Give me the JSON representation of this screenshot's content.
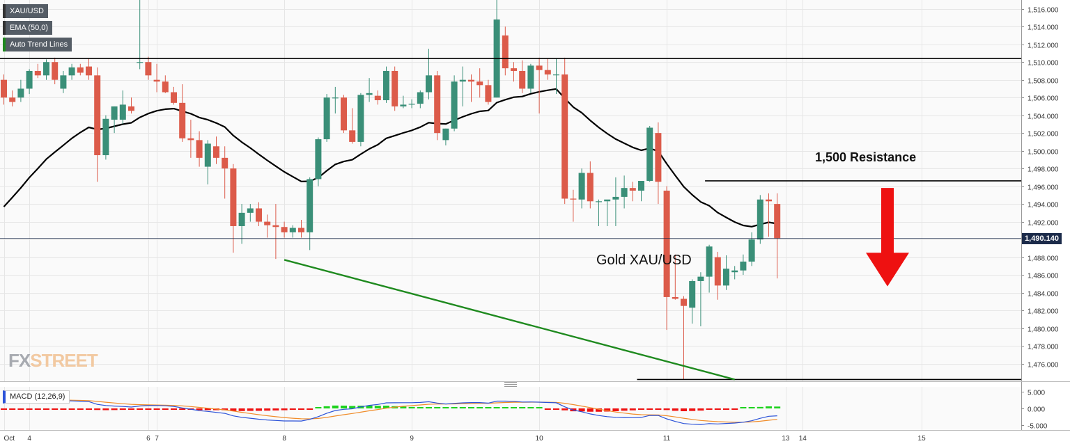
{
  "legend": {
    "symbol": "XAU/USD",
    "ema": "EMA (50,0)",
    "trend": "Auto Trend Lines",
    "macd": "MACD (12,26,9)"
  },
  "annotations": {
    "resistance_label": "1,500 Resistance",
    "asset_label": "Gold XAU/USD",
    "last_price_label": "1,490.140"
  },
  "watermark": {
    "left": "FX",
    "right": "STREET"
  },
  "colors": {
    "up": "#3a8f78",
    "down": "#dc5b4a",
    "ema": "#000000",
    "trendline": "#1f8a1f",
    "resistance": "#000000",
    "arrow": "#ee1111",
    "macd_line": "#2b52d8",
    "signal_line": "#f08c2a",
    "hist_pos": "#1ed21e",
    "hist_neg": "#ee1111",
    "grid": "#e6e6e6"
  },
  "chart_data": {
    "type": "candlestick",
    "y_range": [
      1474,
      1517
    ],
    "y_ticks": [
      1476,
      1478,
      1480,
      1482,
      1484,
      1486,
      1488,
      1490,
      1492,
      1494,
      1496,
      1498,
      1500,
      1502,
      1504,
      1506,
      1508,
      1510,
      1512,
      1514,
      1516
    ],
    "y_tick_labels": [
      "1,476.000",
      "1,478.000",
      "1,480.000",
      "1,482.000",
      "1,484.000",
      "1,486.000",
      "1,488.000",
      "1,490.000",
      "1,492.000",
      "1,494.000",
      "1,496.000",
      "1,498.000",
      "1,500.000",
      "1,502.000",
      "1,504.000",
      "1,506.000",
      "1,508.000",
      "1,510.000",
      "1,512.000",
      "1,514.000",
      "1,516.000"
    ],
    "x_labels": [
      {
        "text": "Oct",
        "bar": 0
      },
      {
        "text": "4",
        "bar": 3
      },
      {
        "text": "6",
        "bar": 17
      },
      {
        "text": "7",
        "bar": 18
      },
      {
        "text": "8",
        "bar": 33
      },
      {
        "text": "9",
        "bar": 48
      },
      {
        "text": "10",
        "bar": 63
      },
      {
        "text": "11",
        "bar": 78
      },
      {
        "text": "13",
        "bar": 92
      },
      {
        "text": "14",
        "bar": 94
      },
      {
        "text": "15",
        "bar": 108
      }
    ],
    "last_price": 1490.14,
    "resistance_levels": [
      {
        "value": 1510.4,
        "from_bar": 0,
        "to_bar": 122
      },
      {
        "value": 1496.6,
        "from_bar": 83,
        "to_bar": 122
      },
      {
        "value": 1474.2,
        "from_bar": 75,
        "to_bar": 122
      }
    ],
    "trendline": {
      "from": {
        "bar": 33,
        "value": 1487.7
      },
      "to": {
        "bar": 86,
        "value": 1474.2
      }
    },
    "candles": [
      [
        1508,
        1508.6,
        1505.2,
        1506
      ],
      [
        1506,
        1506.8,
        1505,
        1505.5
      ],
      [
        1506,
        1508,
        1505.5,
        1507
      ],
      [
        1507,
        1509.2,
        1506.4,
        1509
      ],
      [
        1509,
        1509.8,
        1508.2,
        1508.5
      ],
      [
        1508.5,
        1510.3,
        1508,
        1510
      ],
      [
        1510,
        1510.5,
        1507.5,
        1508
      ],
      [
        1507,
        1509,
        1506.5,
        1508.5
      ],
      [
        1508.5,
        1509.8,
        1508,
        1509.4
      ],
      [
        1509.4,
        1509.8,
        1508.5,
        1508.8
      ],
      [
        1509.5,
        1510.4,
        1508,
        1508.5
      ],
      [
        1508.5,
        1509.4,
        1496.5,
        1499.5
      ],
      [
        1499.5,
        1504,
        1499,
        1503.6
      ],
      [
        1503.5,
        1505,
        1502,
        1505
      ],
      [
        1503.5,
        1506.8,
        1503,
        1505.2
      ],
      [
        1505,
        1506,
        1504.2,
        1504.5
      ],
      [
        1510,
        1518.5,
        1509.2,
        1510
      ],
      [
        1510,
        1510.6,
        1508,
        1508.5
      ],
      [
        1508,
        1509.8,
        1506.6,
        1507.8
      ],
      [
        1507.8,
        1508.5,
        1506.5,
        1506.6
      ],
      [
        1506.6,
        1507.2,
        1505.2,
        1505.4
      ],
      [
        1505.4,
        1507.5,
        1501,
        1501.4
      ],
      [
        1501.4,
        1503.5,
        1499.2,
        1501.2
      ],
      [
        1501.2,
        1502.2,
        1498.2,
        1499.2
      ],
      [
        1498.2,
        1501.2,
        1496.2,
        1500.8
      ],
      [
        1500.5,
        1501.6,
        1498.5,
        1499.2
      ],
      [
        1499.2,
        1500.5,
        1494.6,
        1498
      ],
      [
        1498,
        1498.5,
        1488.5,
        1491.5
      ],
      [
        1491.5,
        1494,
        1489.5,
        1493
      ],
      [
        1493,
        1494,
        1492,
        1493.5
      ],
      [
        1493.5,
        1494.2,
        1491.5,
        1492
      ],
      [
        1492,
        1492.8,
        1490.2,
        1491.6
      ],
      [
        1491.6,
        1494,
        1487.8,
        1491.4
      ],
      [
        1491.4,
        1492,
        1490.2,
        1490.8
      ],
      [
        1490.8,
        1491.6,
        1490.2,
        1491.3
      ],
      [
        1491.3,
        1492.2,
        1490.2,
        1490.8
      ],
      [
        1490.8,
        1497,
        1488.8,
        1496.8
      ],
      [
        1496.8,
        1501.5,
        1496,
        1501.3
      ],
      [
        1501.3,
        1506.4,
        1501,
        1506
      ],
      [
        1506,
        1507.2,
        1504.2,
        1506
      ],
      [
        1506,
        1506.3,
        1502,
        1502.3
      ],
      [
        1502.3,
        1504.8,
        1500.8,
        1501
      ],
      [
        1501,
        1506.5,
        1500.5,
        1506.3
      ],
      [
        1506.3,
        1508.2,
        1505.5,
        1506.5
      ],
      [
        1506.2,
        1506.8,
        1505.2,
        1505.7
      ],
      [
        1505.7,
        1509.5,
        1505.4,
        1509
      ],
      [
        1509,
        1509.5,
        1504.5,
        1505
      ],
      [
        1505,
        1506.2,
        1504.8,
        1505.2
      ],
      [
        1505.2,
        1505.8,
        1504.8,
        1505.3
      ],
      [
        1505.3,
        1506.8,
        1504.8,
        1506.6
      ],
      [
        1506.6,
        1511.5,
        1505.8,
        1508.5
      ],
      [
        1508.5,
        1509,
        1501.2,
        1502
      ],
      [
        1501.2,
        1502.5,
        1500.6,
        1502.5
      ],
      [
        1502.5,
        1508.5,
        1502.2,
        1507.8
      ],
      [
        1507.8,
        1509.5,
        1505,
        1508
      ],
      [
        1508,
        1508.6,
        1505.5,
        1507.8
      ],
      [
        1507.8,
        1509.3,
        1506,
        1507.4
      ],
      [
        1507.4,
        1508,
        1505.2,
        1505.5
      ],
      [
        1506,
        1517.5,
        1506,
        1514.8
      ],
      [
        1513,
        1514,
        1508.5,
        1509.3
      ],
      [
        1509.3,
        1510,
        1507.8,
        1509
      ],
      [
        1509,
        1510.2,
        1506.5,
        1507
      ],
      [
        1507,
        1509.8,
        1506.5,
        1509.6
      ],
      [
        1509.6,
        1510.5,
        1504.2,
        1509.1
      ],
      [
        1509.1,
        1510.4,
        1508,
        1508.6
      ],
      [
        1508.6,
        1510.4,
        1506.4,
        1508.6
      ],
      [
        1508.6,
        1510.5,
        1494,
        1494.6
      ],
      [
        1494.6,
        1495.6,
        1492,
        1494.5
      ],
      [
        1494.5,
        1498,
        1493.5,
        1497.5
      ],
      [
        1497.5,
        1498.8,
        1493.5,
        1494.3
      ],
      [
        1494.3,
        1494.5,
        1491.5,
        1494.3
      ],
      [
        1494.3,
        1494.3,
        1491.5,
        1494.5
      ],
      [
        1494.5,
        1497,
        1491.5,
        1494.8
      ],
      [
        1494.8,
        1497.2,
        1493.5,
        1495.8
      ],
      [
        1495.8,
        1496.5,
        1494.3,
        1495.5
      ],
      [
        1495.5,
        1496.6,
        1494.3,
        1496.6
      ],
      [
        1496.6,
        1502.8,
        1496.5,
        1502.6
      ],
      [
        1502,
        1503.2,
        1494,
        1496.5
      ],
      [
        1495.5,
        1496,
        1479.8,
        1483.5
      ],
      [
        1483.5,
        1488.3,
        1483.2,
        1483.3
      ],
      [
        1483.3,
        1483.6,
        1474.2,
        1482.5
      ],
      [
        1482.3,
        1485.5,
        1480.5,
        1485.3
      ],
      [
        1485.3,
        1486.3,
        1480.2,
        1485.8
      ],
      [
        1485.8,
        1489.4,
        1484,
        1489.2
      ],
      [
        1488,
        1488.6,
        1483.2,
        1484.8
      ],
      [
        1484.8,
        1488.2,
        1484.3,
        1486.7
      ],
      [
        1486.3,
        1487,
        1485.5,
        1486.5
      ],
      [
        1486.5,
        1488.3,
        1486,
        1487.5
      ],
      [
        1487.5,
        1490.8,
        1487,
        1490
      ],
      [
        1490,
        1495,
        1489.5,
        1494.5
      ],
      [
        1494.5,
        1495.2,
        1490.3,
        1494.3
      ],
      [
        1494,
        1495.2,
        1485.6,
        1490.1
      ]
    ],
    "ema_period": 50,
    "macd": {
      "params": [
        12,
        26,
        9
      ],
      "y_range": [
        -6.5,
        6.5
      ],
      "y_ticks": [
        5,
        0,
        -5
      ],
      "y_tick_labels": [
        "5.000",
        "0.000",
        "-5.000"
      ]
    }
  }
}
